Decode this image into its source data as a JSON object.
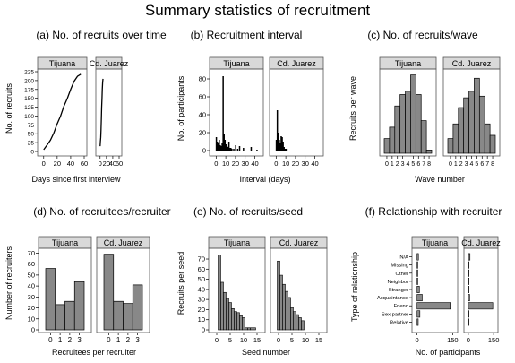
{
  "figure": {
    "title": "Summary statistics of recruitment"
  },
  "chart_data": [
    {
      "id": "a",
      "type": "line",
      "title": "(a) No. of recruits over time",
      "xlabel": "Days since first interview",
      "ylabel": "No. of recruits",
      "panels": [
        {
          "name": "Tijuana",
          "x": [
            0,
            5,
            10,
            15,
            20,
            25,
            30,
            35,
            40,
            45,
            50,
            55
          ],
          "y": [
            5,
            18,
            32,
            52,
            78,
            100,
            128,
            150,
            175,
            198,
            212,
            218
          ]
        },
        {
          "name": "Cd. Juarez",
          "x": [
            0,
            1,
            2,
            3,
            4,
            5,
            6,
            7,
            8,
            9
          ],
          "y": [
            15,
            28,
            40,
            60,
            95,
            125,
            150,
            175,
            195,
            205
          ]
        }
      ],
      "xlim": [
        -5,
        60
      ],
      "xticks": [
        0,
        20,
        40,
        60
      ],
      "ylim": [
        -5,
        225
      ],
      "yticks": [
        0,
        25,
        50,
        75,
        100,
        125,
        150,
        175,
        200,
        225
      ]
    },
    {
      "id": "b",
      "type": "bar",
      "title": "(b) Recruitment interval",
      "xlabel": "Interval (days)",
      "ylabel": "No. of participants",
      "panels": [
        {
          "name": "Tijuana",
          "x": [
            0,
            1,
            2,
            3,
            4,
            5,
            6,
            7,
            8,
            9,
            10,
            11,
            12,
            13,
            14,
            15,
            16,
            18,
            20,
            22,
            24,
            28,
            36,
            42
          ],
          "values": [
            15,
            10,
            8,
            12,
            6,
            5,
            8,
            83,
            18,
            12,
            7,
            5,
            4,
            10,
            3,
            3,
            2,
            2,
            6,
            2,
            5,
            3,
            4,
            1
          ]
        },
        {
          "name": "Cd. Juarez",
          "x": [
            0,
            1,
            2,
            3,
            4,
            5,
            6,
            7,
            8,
            9,
            10
          ],
          "values": [
            12,
            45,
            20,
            12,
            8,
            16,
            15,
            10,
            4,
            2,
            2
          ]
        }
      ],
      "xlim": [
        -4,
        46
      ],
      "xticks": [
        0,
        10,
        20,
        30,
        40
      ],
      "ylim": [
        -3,
        88
      ],
      "yticks": [
        0,
        20,
        40,
        60,
        80
      ]
    },
    {
      "id": "c",
      "type": "bar",
      "title": "(c) No. of recruits/wave",
      "xlabel": "Wave number",
      "ylabel": "Recruits per wave",
      "panels": [
        {
          "name": "Tijuana",
          "categories": [
            "0",
            "1",
            "2",
            "3",
            "4",
            "5",
            "6",
            "7",
            "8"
          ],
          "values": [
            9,
            16,
            29,
            36,
            38,
            48,
            36,
            20,
            2
          ]
        },
        {
          "name": "Cd. Juarez",
          "categories": [
            "0",
            "1",
            "2",
            "3",
            "4",
            "5",
            "6",
            "7",
            "8"
          ],
          "values": [
            9,
            18,
            28,
            34,
            38,
            46,
            35,
            18,
            11
          ]
        }
      ],
      "ylim": [
        0,
        50
      ]
    },
    {
      "id": "d",
      "type": "bar",
      "title": "(d) No. of recruitees/recruiter",
      "xlabel": "Recruitees per recruiter",
      "ylabel": "Number of recruiters",
      "panels": [
        {
          "name": "Tijuana",
          "categories": [
            "0",
            "1",
            "2",
            "3"
          ],
          "values": [
            56,
            23,
            26,
            44
          ]
        },
        {
          "name": "Cd. Juarez",
          "categories": [
            "0",
            "1",
            "2",
            "3"
          ],
          "values": [
            69,
            26,
            24,
            41
          ]
        }
      ],
      "ylim": [
        0,
        72
      ],
      "yticks": [
        0,
        10,
        20,
        30,
        40,
        50,
        60,
        70
      ]
    },
    {
      "id": "e",
      "type": "bar",
      "title": "(e) No. of recruits/seed",
      "xlabel": "Seed number",
      "ylabel": "Recruits per seed",
      "panels": [
        {
          "name": "Tijuana",
          "x": [
            1,
            2,
            3,
            4,
            5,
            6,
            7,
            8,
            9,
            10,
            11,
            12,
            13,
            14
          ],
          "values": [
            74,
            47,
            37,
            31,
            27,
            21,
            18,
            17,
            14,
            12,
            2,
            2,
            2,
            2
          ]
        },
        {
          "name": "Cd. Juarez",
          "x": [
            0,
            1,
            2,
            3,
            4,
            5,
            6,
            7,
            8,
            9
          ],
          "values": [
            68,
            54,
            45,
            38,
            32,
            22,
            18,
            15,
            12,
            9
          ]
        }
      ],
      "xlim": [
        -2,
        17
      ],
      "xticks": [
        0,
        5,
        10,
        15
      ],
      "ylim": [
        0,
        78
      ],
      "yticks": [
        0,
        10,
        20,
        30,
        40,
        50,
        60,
        70
      ]
    },
    {
      "id": "f",
      "type": "bar",
      "orientation": "horizontal",
      "title": "(f) Relationship with recruiter",
      "xlabel": "No. of participants",
      "ylabel": "Type of relationship",
      "categories": [
        "N/A",
        "Missing",
        "Other",
        "Neighbor",
        "Stranger",
        "Acquaintance",
        "Friend",
        "Sex partner",
        "Relative"
      ],
      "panels": [
        {
          "name": "Tijuana",
          "values": [
            6,
            2,
            1,
            3,
            10,
            22,
            140,
            12,
            5
          ]
        },
        {
          "name": "Cd. Juarez",
          "values": [
            10,
            2,
            1,
            2,
            3,
            8,
            145,
            4,
            2
          ]
        }
      ],
      "xlim": [
        -10,
        160
      ],
      "xticks": [
        0,
        150
      ]
    }
  ]
}
